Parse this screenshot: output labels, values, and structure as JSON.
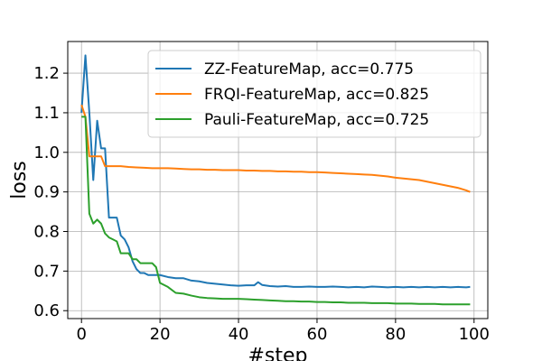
{
  "chart_data": {
    "type": "line",
    "xlabel": "#step",
    "ylabel": "loss",
    "xlim": [
      -3.5,
      103.5
    ],
    "ylim": [
      0.58,
      1.28
    ],
    "xticks": [
      0,
      20,
      40,
      60,
      80,
      100
    ],
    "yticks": [
      0.6,
      0.7,
      0.8,
      0.9,
      1.0,
      1.1,
      1.2
    ],
    "xtick_labels": [
      "0",
      "20",
      "40",
      "60",
      "80",
      "100"
    ],
    "ytick_labels": [
      "0.6",
      "0.7",
      "0.8",
      "0.9",
      "1.0",
      "1.1",
      "1.2"
    ],
    "grid": true,
    "legend_position": "top-right",
    "series": [
      {
        "name": "ZZ-FeatureMap, acc=0.775",
        "color": "#1f77b4",
        "x": [
          0,
          1,
          2,
          3,
          4,
          5,
          6,
          7,
          8,
          9,
          10,
          11,
          12,
          13,
          14,
          15,
          16,
          17,
          18,
          19,
          20,
          22,
          24,
          26,
          28,
          30,
          32,
          34,
          36,
          38,
          40,
          42,
          44,
          45,
          46,
          48,
          50,
          52,
          54,
          56,
          58,
          60,
          62,
          64,
          66,
          68,
          70,
          72,
          74,
          76,
          78,
          80,
          82,
          84,
          86,
          88,
          90,
          92,
          94,
          96,
          98,
          99
        ],
        "y": [
          1.1,
          1.245,
          1.1,
          0.93,
          1.08,
          1.01,
          1.01,
          0.835,
          0.835,
          0.835,
          0.79,
          0.78,
          0.76,
          0.725,
          0.705,
          0.695,
          0.695,
          0.69,
          0.69,
          0.69,
          0.69,
          0.685,
          0.682,
          0.682,
          0.676,
          0.674,
          0.67,
          0.668,
          0.666,
          0.664,
          0.663,
          0.664,
          0.664,
          0.672,
          0.665,
          0.662,
          0.661,
          0.662,
          0.66,
          0.66,
          0.661,
          0.66,
          0.66,
          0.661,
          0.66,
          0.659,
          0.66,
          0.659,
          0.661,
          0.66,
          0.659,
          0.66,
          0.659,
          0.66,
          0.659,
          0.66,
          0.659,
          0.66,
          0.659,
          0.66,
          0.659,
          0.66
        ]
      },
      {
        "name": "FRQI-FeatureMap, acc=0.825",
        "color": "#ff7f0e",
        "x": [
          0,
          1,
          2,
          3,
          4,
          5,
          6,
          7,
          8,
          10,
          12,
          14,
          16,
          18,
          20,
          22,
          24,
          26,
          28,
          30,
          32,
          34,
          36,
          38,
          40,
          42,
          44,
          46,
          48,
          50,
          52,
          54,
          56,
          58,
          60,
          62,
          64,
          66,
          68,
          70,
          72,
          74,
          76,
          78,
          80,
          82,
          84,
          86,
          88,
          90,
          92,
          94,
          96,
          98,
          99
        ],
        "y": [
          1.12,
          1.09,
          0.99,
          0.99,
          0.99,
          0.99,
          0.965,
          0.965,
          0.965,
          0.965,
          0.963,
          0.962,
          0.961,
          0.96,
          0.96,
          0.96,
          0.959,
          0.958,
          0.957,
          0.957,
          0.956,
          0.956,
          0.955,
          0.955,
          0.955,
          0.954,
          0.954,
          0.953,
          0.953,
          0.952,
          0.952,
          0.951,
          0.951,
          0.95,
          0.95,
          0.949,
          0.948,
          0.947,
          0.946,
          0.945,
          0.944,
          0.943,
          0.941,
          0.939,
          0.936,
          0.934,
          0.932,
          0.93,
          0.926,
          0.922,
          0.918,
          0.914,
          0.91,
          0.904,
          0.9
        ]
      },
      {
        "name": "Pauli-FeatureMap, acc=0.725",
        "color": "#2ca02c",
        "x": [
          0,
          1,
          2,
          3,
          4,
          5,
          6,
          7,
          8,
          9,
          10,
          11,
          12,
          13,
          14,
          15,
          16,
          17,
          18,
          19,
          20,
          22,
          24,
          26,
          28,
          30,
          32,
          34,
          36,
          38,
          40,
          42,
          44,
          46,
          48,
          50,
          52,
          54,
          56,
          58,
          60,
          62,
          64,
          66,
          68,
          70,
          72,
          74,
          76,
          78,
          80,
          82,
          84,
          86,
          88,
          90,
          92,
          94,
          96,
          98,
          99
        ],
        "y": [
          1.09,
          1.09,
          0.845,
          0.82,
          0.83,
          0.82,
          0.795,
          0.785,
          0.78,
          0.775,
          0.745,
          0.745,
          0.745,
          0.73,
          0.73,
          0.72,
          0.72,
          0.72,
          0.72,
          0.71,
          0.67,
          0.66,
          0.645,
          0.643,
          0.638,
          0.634,
          0.632,
          0.631,
          0.63,
          0.63,
          0.63,
          0.629,
          0.628,
          0.627,
          0.626,
          0.625,
          0.624,
          0.624,
          0.623,
          0.623,
          0.622,
          0.622,
          0.621,
          0.621,
          0.62,
          0.62,
          0.62,
          0.619,
          0.619,
          0.619,
          0.618,
          0.618,
          0.618,
          0.617,
          0.617,
          0.617,
          0.616,
          0.616,
          0.616,
          0.616,
          0.616
        ]
      }
    ]
  }
}
